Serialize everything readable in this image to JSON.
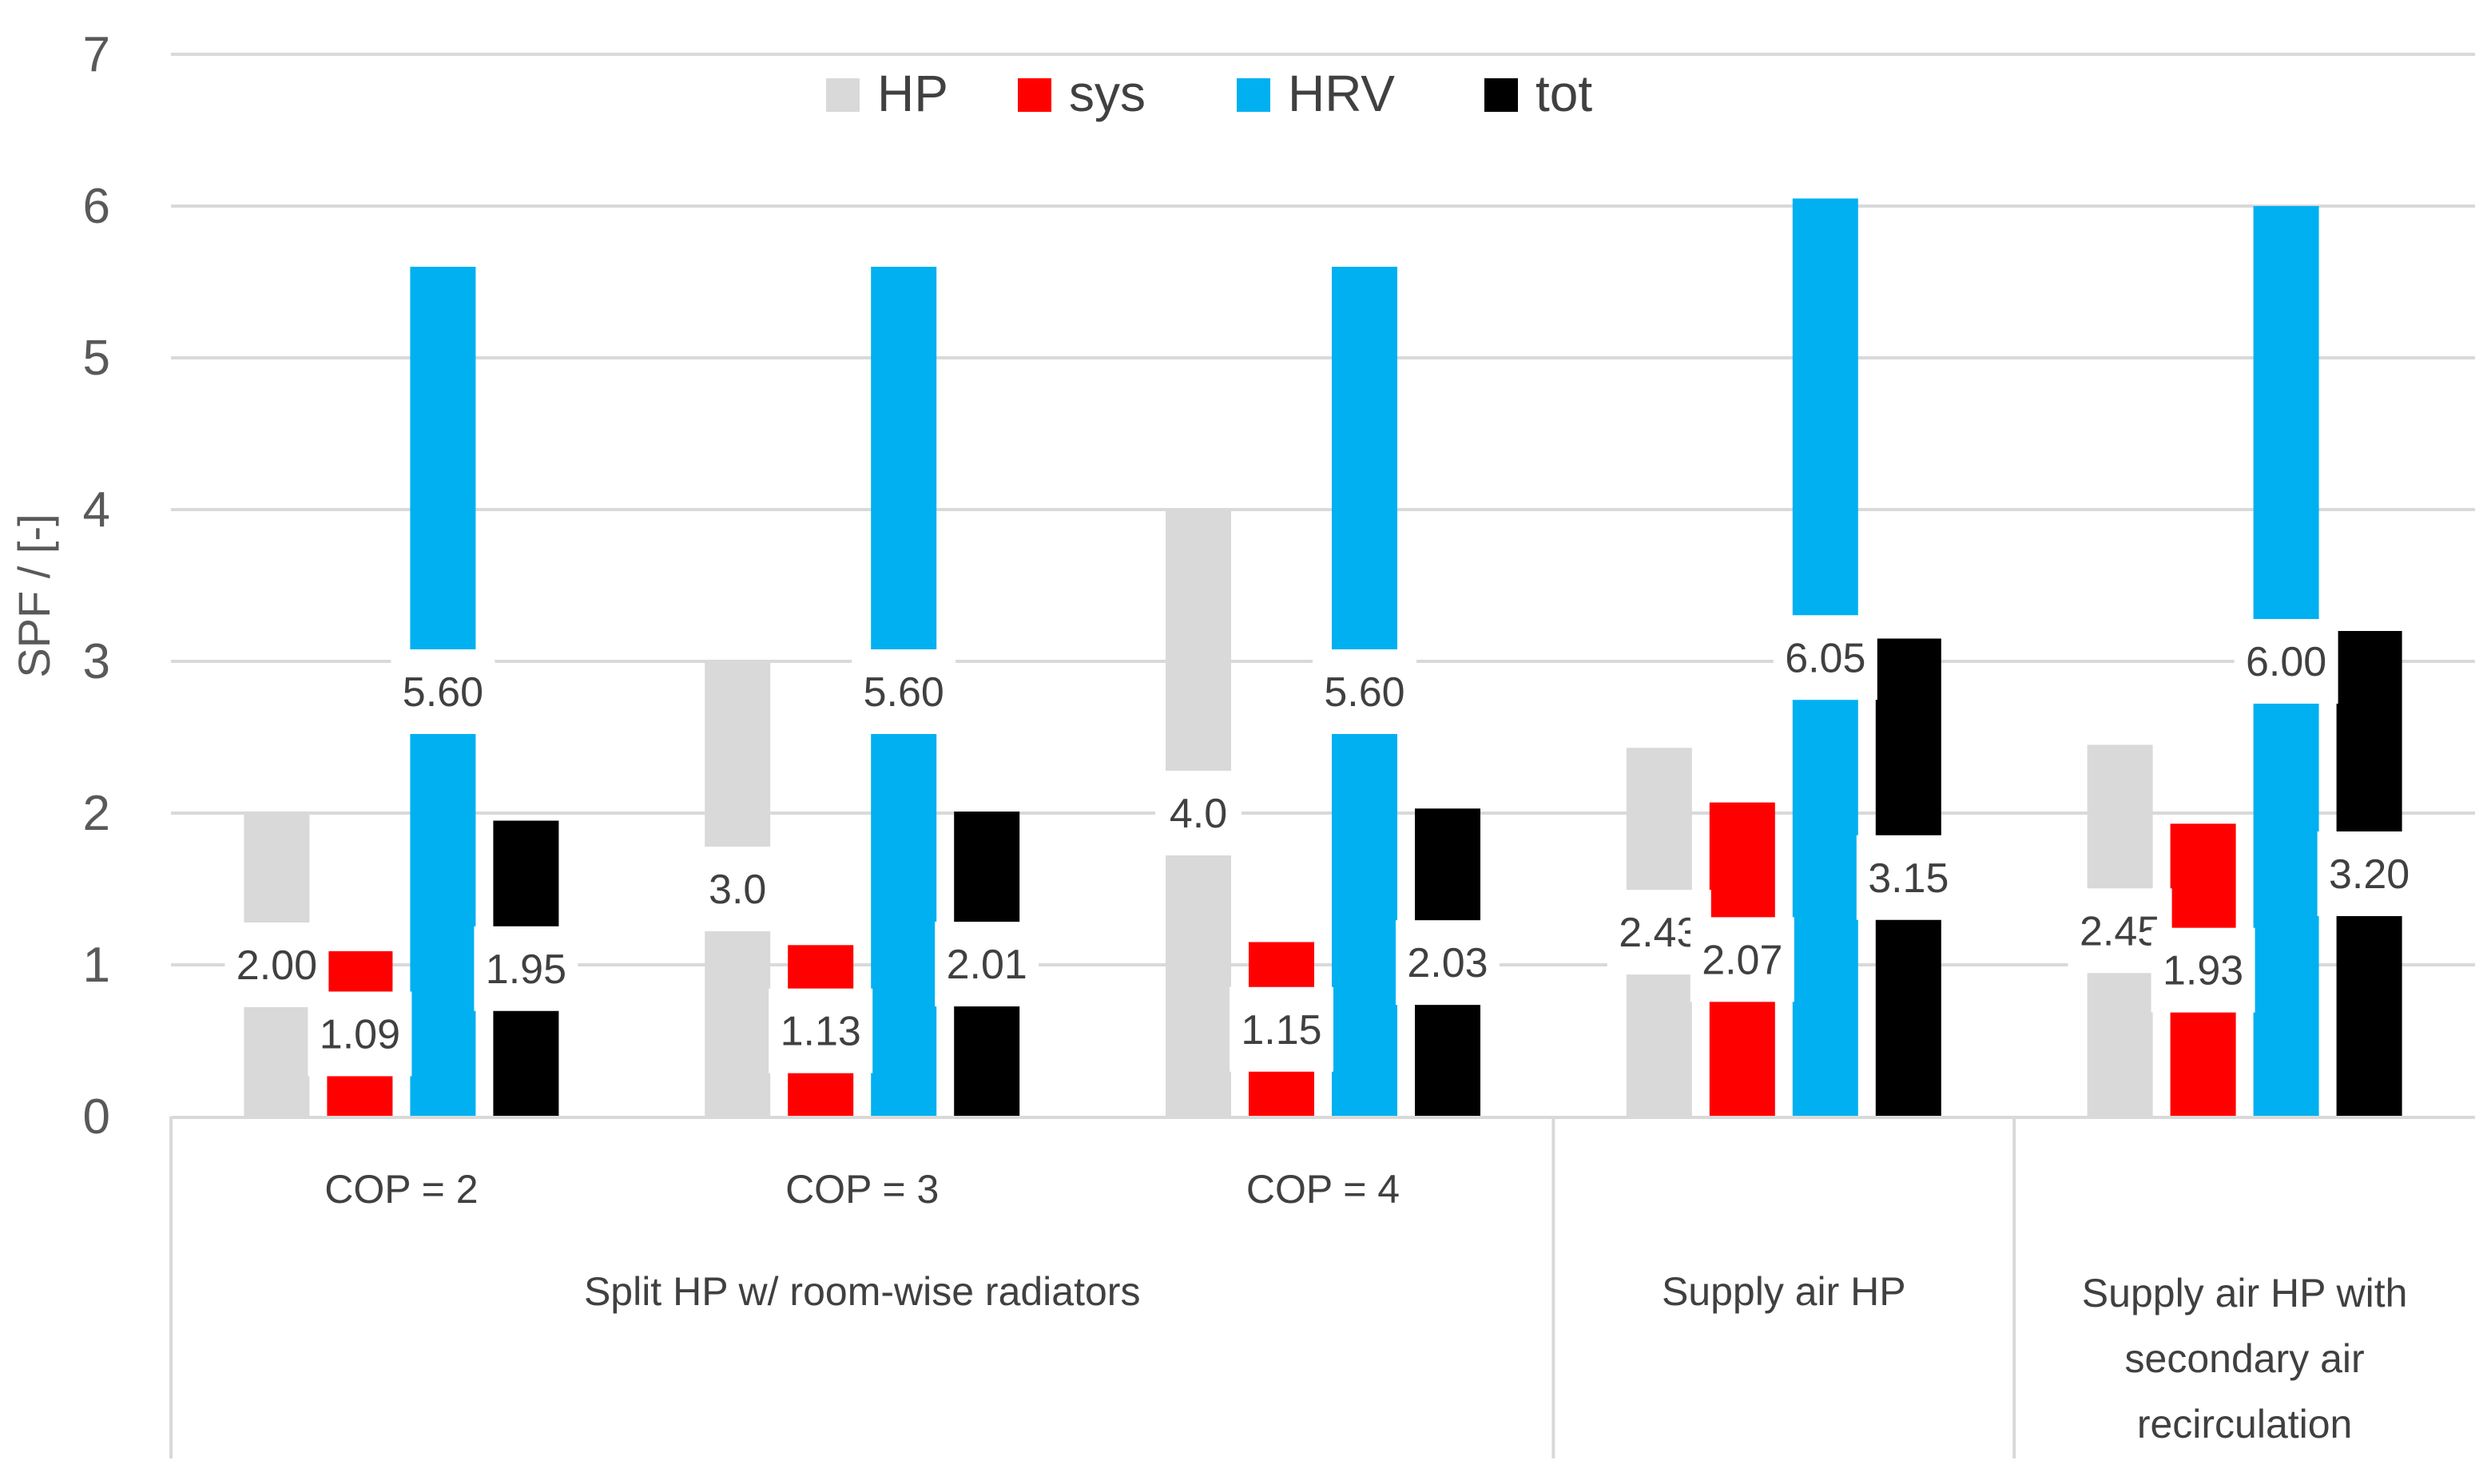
{
  "colors": {
    "HP": "#d9d9d9",
    "sys": "#ff0000",
    "HRV": "#00b0f0",
    "tot": "#000000",
    "grid": "#d9d9d9",
    "axis_text": "#595959",
    "label_text": "#404040",
    "label_bg": "#ffffff"
  },
  "chart_data": {
    "type": "bar",
    "title": "",
    "ylabel": "SPF / [-]",
    "xlabel": "",
    "ylim": [
      0,
      7
    ],
    "yticks": [
      "0",
      "1",
      "2",
      "3",
      "4",
      "5",
      "6",
      "7"
    ],
    "grid": true,
    "legend_position": "top-center",
    "categories": [
      "COP = 2",
      "COP = 3",
      "COP = 4",
      "",
      ""
    ],
    "groups": [
      {
        "label": "Split HP w/ room-wise radiators",
        "span": 3,
        "lines": [
          "Split HP w/ room-wise radiators"
        ]
      },
      {
        "label": "Supply air HP",
        "span": 1,
        "lines": [
          "Supply air HP"
        ]
      },
      {
        "label": "Supply air HP with secondary air recirculation",
        "span": 1,
        "lines": [
          "Supply air HP with",
          "secondary air",
          "recirculation"
        ]
      }
    ],
    "series": [
      {
        "name": "HP",
        "values": [
          2.0,
          3.0,
          4.0,
          2.43,
          2.45
        ],
        "labels": [
          "2.00",
          "3.0",
          "4.0",
          "2.43",
          "2.45"
        ]
      },
      {
        "name": "sys",
        "values": [
          1.09,
          1.13,
          1.15,
          2.07,
          1.93
        ],
        "labels": [
          "1.09",
          "1.13",
          "1.15",
          "2.07",
          "1.93"
        ]
      },
      {
        "name": "HRV",
        "values": [
          5.6,
          5.6,
          5.6,
          6.05,
          6.0
        ],
        "labels": [
          "5.60",
          "5.60",
          "5.60",
          "6.05",
          "6.00"
        ]
      },
      {
        "name": "tot",
        "values": [
          1.95,
          2.01,
          2.03,
          3.15,
          3.2
        ],
        "labels": [
          "1.95",
          "2.01",
          "2.03",
          "3.15",
          "3.20"
        ]
      }
    ]
  }
}
